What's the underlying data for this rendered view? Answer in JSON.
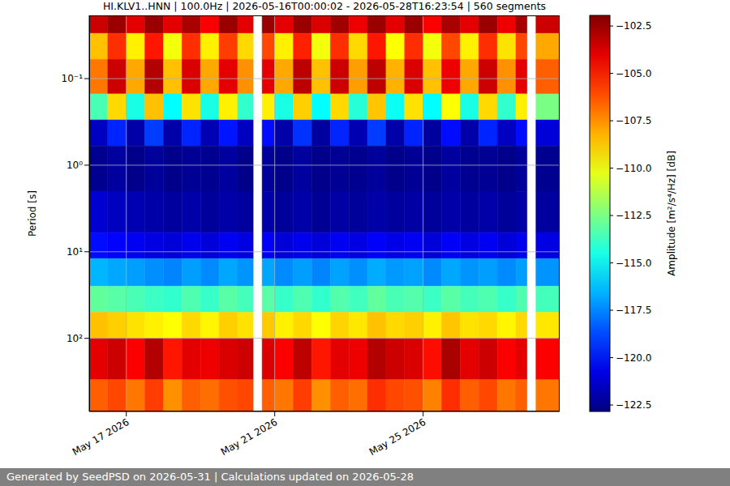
{
  "chart_data": {
    "type": "heatmap",
    "title": "HI.KLV1..HNN | 100.0Hz | 2026-05-16T00:00:02 - 2026-05-28T16:23:54 | 560 segments",
    "y_label": "Period [s]",
    "log": "y",
    "grid": true,
    "xlim": [
      16.0,
      28.68
    ],
    "ylim": [
      0.0186,
      700
    ],
    "xticks": [
      {
        "value": 17,
        "label": "May 17 2026"
      },
      {
        "value": 21,
        "label": "May 21 2026"
      },
      {
        "value": 25,
        "label": "May 25 2026"
      }
    ],
    "yticks": [
      {
        "value": 0.1,
        "label": "10⁻¹"
      },
      {
        "value": 1,
        "label": "10⁰"
      },
      {
        "value": 10,
        "label": "10¹"
      },
      {
        "value": 100,
        "label": "10²"
      }
    ],
    "x_edges": [
      16.0,
      16.5,
      17.0,
      17.5,
      18.0,
      18.5,
      19.0,
      19.5,
      20.0,
      20.42,
      20.66,
      21.0,
      21.5,
      22.0,
      22.5,
      23.0,
      23.5,
      24.0,
      24.5,
      25.0,
      25.5,
      26.0,
      26.5,
      27.0,
      27.5,
      27.8,
      28.04,
      28.68
    ],
    "y_edges": [
      0.0186,
      0.03,
      0.06,
      0.15,
      0.3,
      0.6,
      2,
      6,
      12,
      25,
      50,
      100,
      300,
      700
    ],
    "cells": [
      [
        -103.5,
        -102.5,
        -104,
        -102.5,
        -104,
        -102.8,
        -104.5,
        -102.5,
        -104,
        null,
        -102.5,
        -104,
        -102.5,
        -103.8,
        -102.6,
        -104.2,
        -102.5,
        -104,
        -102.5,
        -104.5,
        -102.8,
        -104,
        -102.5,
        -104.2,
        -102.7,
        null,
        -103.5
      ],
      [
        -108.5,
        -105.5,
        -109.5,
        -105,
        -110,
        -105.5,
        -109.5,
        -105.8,
        -109,
        null,
        -106,
        -109.5,
        -105.2,
        -110,
        -105.5,
        -109,
        -105,
        -109.8,
        -105.5,
        -110,
        -106,
        -109.5,
        -105.5,
        -109.2,
        -106,
        null,
        -108
      ],
      [
        -107,
        -103.5,
        -108,
        -103,
        -108.5,
        -103.8,
        -108,
        -104,
        -107.5,
        null,
        -104,
        -108,
        -103.2,
        -108.5,
        -103.5,
        -107.8,
        -103.2,
        -108.2,
        -103.8,
        -108.5,
        -104.2,
        -108,
        -103.5,
        -107.5,
        -104,
        null,
        -106.5
      ],
      [
        -113.5,
        -109,
        -114.5,
        -108.5,
        -115,
        -109.2,
        -114.5,
        -109.5,
        -114,
        null,
        -109.5,
        -114.5,
        -108.8,
        -115,
        -109,
        -114.2,
        -108.6,
        -114.8,
        -109.2,
        -115,
        -109.8,
        -114.5,
        -109,
        -114,
        -109.5,
        null,
        -112.5
      ],
      [
        -121.5,
        -119.5,
        -122,
        -119,
        -122,
        -119.5,
        -121.8,
        -119.8,
        -121.5,
        null,
        -120,
        -122,
        -119.2,
        -122.2,
        -119.5,
        -121.8,
        -119,
        -122,
        -119.5,
        -122.2,
        -120,
        -122,
        -119.5,
        -121.5,
        -120,
        null,
        -121
      ],
      [
        -122.5,
        -122.2,
        -122.6,
        -122.3,
        -122.6,
        -122.4,
        -122.5,
        -122.2,
        -122.6,
        null,
        -122.3,
        -122.6,
        -122.2,
        -122.6,
        -122.4,
        -122.5,
        -122.3,
        -122.6,
        -122.4,
        -122.6,
        -122.2,
        -122.5,
        -122.4,
        -122.6,
        -122.3,
        null,
        -122.5
      ],
      [
        -121.2,
        -121.5,
        -121.8,
        -122,
        -122.2,
        -122,
        -122.3,
        -122,
        -122.2,
        null,
        -122,
        -122.3,
        -122,
        -122.4,
        -122.1,
        -122.3,
        -122,
        -122.2,
        -122.1,
        -122.3,
        -122,
        -122.2,
        -122,
        -122.3,
        -122.1,
        null,
        -122.2
      ],
      [
        -120,
        -120.2,
        -120.5,
        -120.8,
        -121,
        -120.6,
        -121,
        -120.5,
        -120.8,
        null,
        -120.4,
        -121,
        -120.6,
        -121,
        -120.5,
        -120.8,
        -120.3,
        -120.7,
        -120.5,
        -121,
        -120.4,
        -120.8,
        -120.5,
        -121,
        -120.6,
        null,
        -120.8
      ],
      [
        -116.5,
        -116.8,
        -117,
        -117.3,
        -117.5,
        -117,
        -117.4,
        -116.8,
        -117.2,
        null,
        -116.8,
        -117.4,
        -117,
        -117.5,
        -116.9,
        -117.3,
        -116.7,
        -117.1,
        -116.9,
        -117.4,
        -116.8,
        -117.2,
        -117,
        -117.4,
        -117,
        null,
        -117.2
      ],
      [
        -113,
        -113.2,
        -113.5,
        -113.8,
        -114,
        -113.4,
        -113.9,
        -113.2,
        -113.6,
        null,
        -113.2,
        -113.9,
        -113.4,
        -114,
        -113.3,
        -113.7,
        -113,
        -113.5,
        -113.3,
        -113.8,
        -113.2,
        -113.6,
        -113.4,
        -113.9,
        -113.4,
        null,
        -113.6
      ],
      [
        -108.5,
        -108.8,
        -109.2,
        -109.5,
        -109.8,
        -109,
        -109.6,
        -108.8,
        -109.2,
        null,
        -108.7,
        -109.5,
        -109,
        -109.8,
        -108.9,
        -109.3,
        -108.5,
        -109,
        -108.8,
        -109.5,
        -108.6,
        -109.2,
        -109,
        -109.6,
        -109,
        null,
        -109.3
      ],
      [
        -104,
        -103.5,
        -104.5,
        -103,
        -105,
        -104,
        -104.2,
        -103.8,
        -103.5,
        null,
        -103.8,
        -104.5,
        -103.2,
        -105,
        -104,
        -104.2,
        -103,
        -103.5,
        -103.8,
        -104.8,
        -102.8,
        -104,
        -103.5,
        -104.5,
        -104,
        null,
        -104.5
      ],
      [
        -106.5,
        -106,
        -107,
        -105.8,
        -107.5,
        -106.5,
        -106.8,
        -106.2,
        -106,
        null,
        -106.5,
        -107,
        -105.8,
        -107.5,
        -106.5,
        -106.8,
        -105.5,
        -106,
        -106.2,
        -107.2,
        -105.5,
        -106.5,
        -106,
        -107,
        -106.5,
        null,
        -107
      ]
    ],
    "colorbar": {
      "label": "Amplitude [m²/s⁴/Hz] [dB]",
      "range": [
        -122.84,
        -101.94
      ],
      "ticks": [
        {
          "value": -102.5,
          "label": "−102.5"
        },
        {
          "value": -105,
          "label": "−105.0"
        },
        {
          "value": -107.5,
          "label": "−107.5"
        },
        {
          "value": -110,
          "label": "−110.0"
        },
        {
          "value": -112.5,
          "label": "−112.5"
        },
        {
          "value": -115,
          "label": "−115.0"
        },
        {
          "value": -117.5,
          "label": "−117.5"
        },
        {
          "value": -120,
          "label": "−120.0"
        },
        {
          "value": -122.5,
          "label": "−122.5"
        }
      ]
    }
  },
  "footer": "Generated by SeedPSD on 2026-05-31 | Calculations updated on 2026-05-28"
}
